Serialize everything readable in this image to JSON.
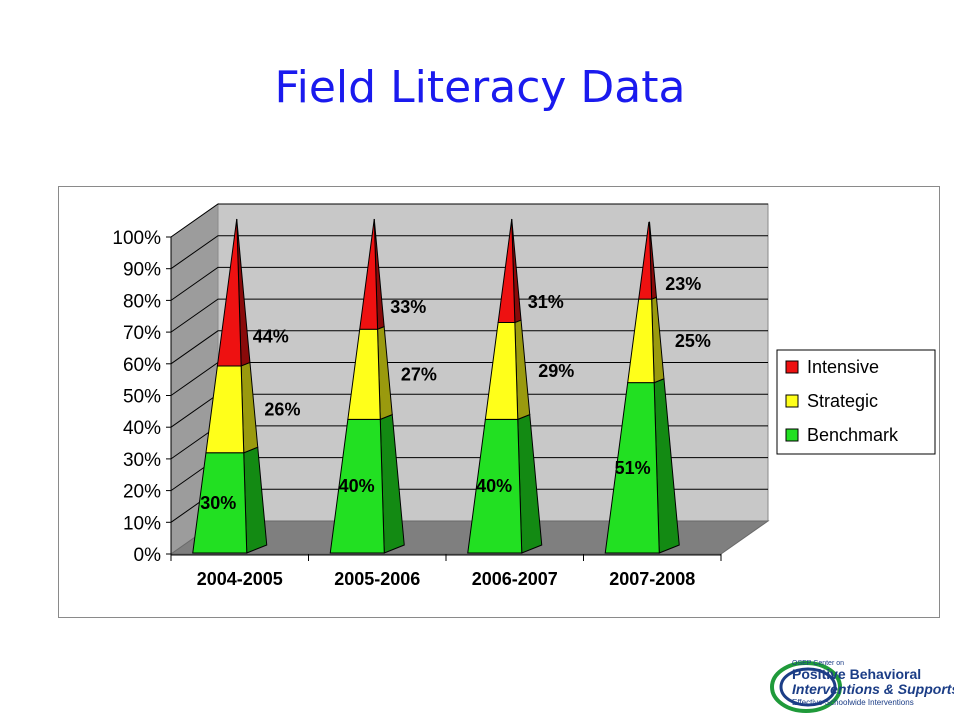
{
  "title": "Field Literacy Data",
  "chart_data": {
    "type": "bar",
    "style": "3d-stacked-pyramid",
    "categories": [
      "2004-2005",
      "2005-2006",
      "2006-2007",
      "2007-2008"
    ],
    "series": [
      {
        "name": "Benchmark",
        "color": "#22e022",
        "side_color": "#138a13",
        "values": [
          30,
          40,
          40,
          51
        ],
        "labels": [
          "30%",
          "40%",
          "40%",
          "51%"
        ]
      },
      {
        "name": "Strategic",
        "color": "#ffff1a",
        "side_color": "#9a9a0e",
        "values": [
          26,
          27,
          29,
          25
        ],
        "labels": [
          "26%",
          "27%",
          "29%",
          "25%"
        ]
      },
      {
        "name": "Intensive",
        "color": "#ee1111",
        "side_color": "#8a0a0a",
        "values": [
          44,
          33,
          31,
          23
        ],
        "labels": [
          "44%",
          "33%",
          "31%",
          "23%"
        ]
      }
    ],
    "y_ticks": [
      "0%",
      "10%",
      "20%",
      "30%",
      "40%",
      "50%",
      "60%",
      "70%",
      "80%",
      "90%",
      "100%"
    ],
    "ylim": [
      0,
      100
    ],
    "grid": true,
    "legend_position": "right"
  },
  "logo": {
    "line1": "OSEP Center on",
    "line2": "Positive Behavioral",
    "line3": "Interventions & Supports",
    "line4": "Effective Schoolwide Interventions"
  }
}
